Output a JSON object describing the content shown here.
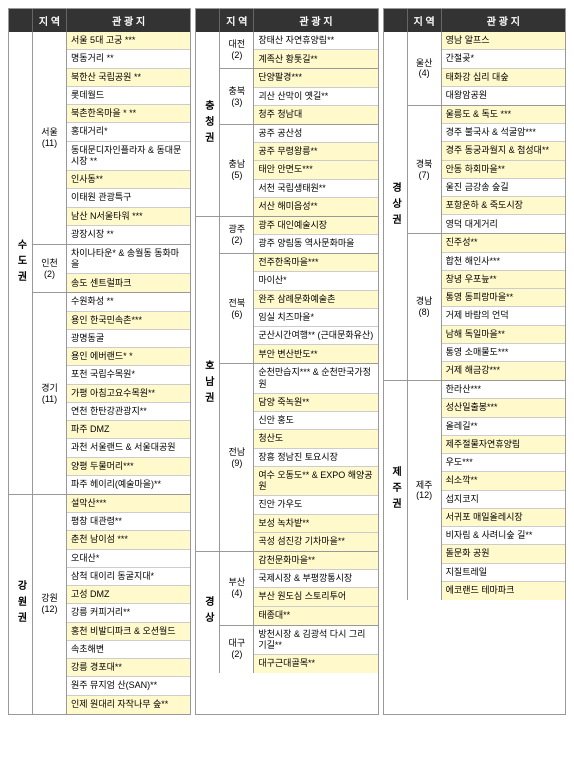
{
  "headers": {
    "region": "지 역",
    "spot": "관 광 지"
  },
  "colors": {
    "highlight": "#fff9cc",
    "header_bg": "#333333",
    "header_fg": "#ffffff",
    "border": "#999999"
  },
  "columns": [
    {
      "groups": [
        {
          "big": "수도권",
          "subs": [
            {
              "sub": "서울\n(11)",
              "spots": [
                {
                  "t": "서울 5대 고궁 ***",
                  "hl": true
                },
                {
                  "t": "명동거리 **"
                },
                {
                  "t": "북한산 국립공원 **",
                  "hl": true
                },
                {
                  "t": "롯데월드"
                },
                {
                  "t": "북촌한옥마을 * **",
                  "hl": true
                },
                {
                  "t": "홍대거리*"
                },
                {
                  "t": "동대문디자인플라자 & 동대문시장 **"
                },
                {
                  "t": "인사동**",
                  "hl": true
                },
                {
                  "t": "이태원 관광특구"
                },
                {
                  "t": "남산 N서울타워 ***",
                  "hl": true
                },
                {
                  "t": "광장시장 **"
                }
              ]
            },
            {
              "sub": "인천\n(2)",
              "spots": [
                {
                  "t": "차이나타운* & 송월동 동화마을"
                },
                {
                  "t": "송도 센트럴파크",
                  "hl": true
                }
              ]
            },
            {
              "sub": "경기\n(11)",
              "spots": [
                {
                  "t": "수원화성 **"
                },
                {
                  "t": "용인 한국민속촌***",
                  "hl": true
                },
                {
                  "t": "광명동굴"
                },
                {
                  "t": "용인 에버랜드* *",
                  "hl": true
                },
                {
                  "t": "포천 국립수목원*"
                },
                {
                  "t": "가평 아침고요수목원**",
                  "hl": true
                },
                {
                  "t": "연천 한탄강관광지**"
                },
                {
                  "t": "파주 DMZ",
                  "hl": true
                },
                {
                  "t": "과천 서울랜드 & 서울대공원"
                },
                {
                  "t": "양평 두물머리***",
                  "hl": true
                },
                {
                  "t": "파주 헤이리(예술마을)**"
                }
              ]
            }
          ]
        },
        {
          "big": "강원권",
          "subs": [
            {
              "sub": "강원\n(12)",
              "spots": [
                {
                  "t": "설악산***",
                  "hl": true
                },
                {
                  "t": "평창 대관령**"
                },
                {
                  "t": "춘천 남이섬 ***",
                  "hl": true
                },
                {
                  "t": "오대산*"
                },
                {
                  "t": "삼척 대이리 동굴지대*"
                },
                {
                  "t": "고성 DMZ",
                  "hl": true
                },
                {
                  "t": "강릉 커피거리**"
                },
                {
                  "t": "홍천 비발디파크 & 오션월드",
                  "hl": true
                },
                {
                  "t": "속초해변"
                },
                {
                  "t": "강릉 경포대**",
                  "hl": true
                },
                {
                  "t": "원주 뮤지엄 산(SAN)**"
                },
                {
                  "t": "인제 원대리 자작나무 숲**",
                  "hl": true
                }
              ]
            }
          ]
        }
      ]
    },
    {
      "groups": [
        {
          "big": "충청권",
          "subs": [
            {
              "sub": "대전\n(2)",
              "spots": [
                {
                  "t": "장태산 자연휴양림**"
                },
                {
                  "t": "계족산 황톳길**",
                  "hl": true
                }
              ]
            },
            {
              "sub": "충북\n(3)",
              "spots": [
                {
                  "t": "단양팔경***",
                  "hl": true
                },
                {
                  "t": "괴산 산막이 옛길**"
                },
                {
                  "t": "청주 청남대",
                  "hl": true
                }
              ]
            },
            {
              "sub": "충남\n(5)",
              "spots": [
                {
                  "t": "공주 공산성"
                },
                {
                  "t": "공주 무령왕릉**",
                  "hl": true
                },
                {
                  "t": "태안 안면도***",
                  "hl": true
                },
                {
                  "t": "서천 국립생태원**"
                },
                {
                  "t": "서산 해미읍성**",
                  "hl": true
                }
              ]
            }
          ]
        },
        {
          "big": "호남권",
          "subs": [
            {
              "sub": "광주\n(2)",
              "spots": [
                {
                  "t": "광주 대인예술시장",
                  "hl": true
                },
                {
                  "t": "광주 양림동 역사문화마을"
                }
              ]
            },
            {
              "sub": "전북\n(6)",
              "spots": [
                {
                  "t": "전주한옥마을***",
                  "hl": true
                },
                {
                  "t": "마이산*"
                },
                {
                  "t": "완주 삼례문화예술촌",
                  "hl": true
                },
                {
                  "t": "임실 치즈마을*"
                },
                {
                  "t": "군산시간여행** (근대문화유산)"
                },
                {
                  "t": "부안 변산반도**",
                  "hl": true
                }
              ]
            },
            {
              "sub": "전남\n(9)",
              "spots": [
                {
                  "t": "순천만습지*** & 순천만국가정원"
                },
                {
                  "t": "담양 죽녹원**",
                  "hl": true
                },
                {
                  "t": "신안 홍도"
                },
                {
                  "t": "청산도",
                  "hl": true
                },
                {
                  "t": "장흥 정남진 토요시장"
                },
                {
                  "t": "여수 오동도** & EXPO 해양공원",
                  "hl": true
                },
                {
                  "t": "진안 가우도"
                },
                {
                  "t": "보성 녹차밭**",
                  "hl": true
                },
                {
                  "t": "곡성 섬진강 기차마을**",
                  "hl": true
                }
              ]
            }
          ]
        },
        {
          "big": "경상",
          "subs": [
            {
              "sub": "부산\n(4)",
              "spots": [
                {
                  "t": "감천문화마을**",
                  "hl": true
                },
                {
                  "t": "국제시장 & 부평깡통시장"
                },
                {
                  "t": "부산 원도심 스토리투어",
                  "hl": true
                },
                {
                  "t": "태종대**",
                  "hl": true
                }
              ]
            },
            {
              "sub": "대구\n(2)",
              "spots": [
                {
                  "t": "방천시장 & 김광석 다시 그리기길**"
                },
                {
                  "t": "대구근대골목**",
                  "hl": true
                }
              ]
            }
          ]
        }
      ]
    },
    {
      "groups": [
        {
          "big": "경상권",
          "subs": [
            {
              "sub": "울산\n(4)",
              "spots": [
                {
                  "t": "영남 알프스",
                  "hl": true
                },
                {
                  "t": "간절곶*"
                },
                {
                  "t": "태화강 십리 대숲",
                  "hl": true
                },
                {
                  "t": "대왕암공원"
                }
              ]
            },
            {
              "sub": "경북\n(7)",
              "spots": [
                {
                  "t": "울릉도 & 독도 ***",
                  "hl": true
                },
                {
                  "t": "경주 불국사 & 석굴암***"
                },
                {
                  "t": "경주 동궁과월지 & 첨성대**",
                  "hl": true
                },
                {
                  "t": "안동 하회마을**",
                  "hl": true
                },
                {
                  "t": "울진 금강송 숲길"
                },
                {
                  "t": "포항운하 & 죽도시장",
                  "hl": true
                },
                {
                  "t": "영덕 대게거리"
                }
              ]
            },
            {
              "sub": "경남\n(8)",
              "spots": [
                {
                  "t": "진주성**",
                  "hl": true
                },
                {
                  "t": "합천 해인사***"
                },
                {
                  "t": "창녕 우포늪**",
                  "hl": true
                },
                {
                  "t": "통영 동피랑마을**",
                  "hl": true
                },
                {
                  "t": "거제 바람의 언덕"
                },
                {
                  "t": "남해 독일마을**",
                  "hl": true
                },
                {
                  "t": "통영 소매물도***"
                },
                {
                  "t": "거제 해금강***",
                  "hl": true
                }
              ]
            }
          ]
        },
        {
          "big": "제주권",
          "subs": [
            {
              "sub": "제주\n(12)",
              "spots": [
                {
                  "t": "한라산***"
                },
                {
                  "t": "성산일출봉***",
                  "hl": true
                },
                {
                  "t": "올레길**"
                },
                {
                  "t": "제주절물자연휴양림",
                  "hl": true
                },
                {
                  "t": "우도***"
                },
                {
                  "t": "쇠소깍**",
                  "hl": true
                },
                {
                  "t": "섭지코지"
                },
                {
                  "t": "서귀포 매일올레시장",
                  "hl": true
                },
                {
                  "t": "비자림 & 사려니숲 길**"
                },
                {
                  "t": "돌문화 공원",
                  "hl": true
                },
                {
                  "t": "지질트레일"
                },
                {
                  "t": "에코랜드 테마파크",
                  "hl": true
                }
              ]
            }
          ]
        }
      ]
    }
  ]
}
